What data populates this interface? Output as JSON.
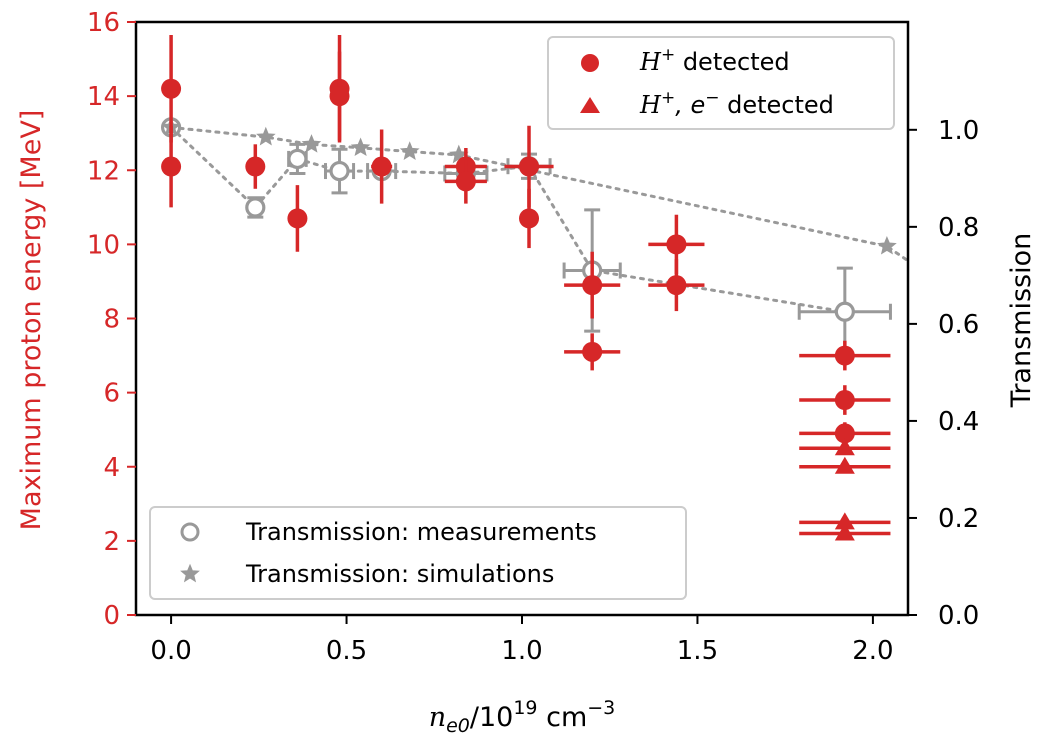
{
  "chart_data": {
    "type": "scatter",
    "xlabel": "n_e0/10^19 cm^-3",
    "xlabel_parts": {
      "n": "n",
      "sub": "e0",
      "mid": "/10",
      "sup1": "19",
      "unit": " cm",
      "sup2": "−3"
    },
    "ylabel_left": "Maximum proton energy [MeV]",
    "ylabel_right": "Transmission",
    "xlim": [
      -0.1,
      2.1
    ],
    "ylim_left": [
      0,
      16
    ],
    "ylim_right": [
      0,
      1.2222
    ],
    "xticks": [
      "0.0",
      "0.5",
      "1.0",
      "1.5",
      "2.0"
    ],
    "xtick_values": [
      0.0,
      0.5,
      1.0,
      1.5,
      2.0
    ],
    "yticks_left": [
      "0",
      "2",
      "4",
      "6",
      "8",
      "10",
      "12",
      "14",
      "16"
    ],
    "ytick_left_values": [
      0,
      2,
      4,
      6,
      8,
      10,
      12,
      14,
      16
    ],
    "yticks_right": [
      "0.0",
      "0.2",
      "0.4",
      "0.6",
      "0.8",
      "1.0"
    ],
    "ytick_right_values": [
      0.0,
      0.2,
      0.4,
      0.6,
      0.8,
      1.0
    ],
    "colors": {
      "red": "#d62728",
      "gray": "#999999"
    },
    "legend_top": {
      "placement": "top-right",
      "entries": [
        {
          "marker": "circle",
          "label_math": "H",
          "label_sup": "+",
          "label_rest": " detected"
        },
        {
          "marker": "triangle",
          "label_math": "H",
          "label_sup": "+",
          "label_mid": ", e",
          "label_sup2": "−",
          "label_rest": " detected"
        }
      ]
    },
    "legend_bottom": {
      "placement": "bottom-left",
      "entries": [
        {
          "marker": "open-circle",
          "label": "Transmission: measurements"
        },
        {
          "marker": "star",
          "label": "Transmission: simulations"
        }
      ]
    },
    "series": [
      {
        "name": "H+ detected",
        "axis": "left",
        "marker": "circle",
        "points": [
          {
            "x": 0.0,
            "y": 14.2,
            "yerr": 1.45,
            "xerr": 0
          },
          {
            "x": 0.0,
            "y": 12.1,
            "yerr": 1.1,
            "xerr": 0
          },
          {
            "x": 0.24,
            "y": 12.1,
            "yerr": 0.6,
            "xerr": 0
          },
          {
            "x": 0.36,
            "y": 10.7,
            "yerr": 0.9,
            "xerr": 0
          },
          {
            "x": 0.48,
            "y": 14.2,
            "yerr": 1.45,
            "xerr": 0
          },
          {
            "x": 0.48,
            "y": 14.0,
            "yerr": 1.2,
            "xerr": 0
          },
          {
            "x": 0.6,
            "y": 12.1,
            "yerr": 1.0,
            "xerr": 0.03
          },
          {
            "x": 0.84,
            "y": 12.1,
            "yerr": 0.5,
            "xerr": 0.06
          },
          {
            "x": 0.84,
            "y": 11.7,
            "yerr": 0.6,
            "xerr": 0.06
          },
          {
            "x": 1.02,
            "y": 12.1,
            "yerr": 1.1,
            "xerr": 0.07
          },
          {
            "x": 1.02,
            "y": 10.7,
            "yerr": 0.8,
            "xerr": 0
          },
          {
            "x": 1.2,
            "y": 8.9,
            "yerr": 0.9,
            "xerr": 0.08
          },
          {
            "x": 1.2,
            "y": 7.1,
            "yerr": 0.5,
            "xerr": 0.08
          },
          {
            "x": 1.44,
            "y": 10.0,
            "yerr": 0.8,
            "xerr": 0.08
          },
          {
            "x": 1.44,
            "y": 8.9,
            "yerr": 0.7,
            "xerr": 0.08
          },
          {
            "x": 1.92,
            "y": 7.0,
            "yerr": 0.4,
            "xerr": 0.13
          },
          {
            "x": 1.92,
            "y": 5.8,
            "yerr": 0.4,
            "xerr": 0.13
          },
          {
            "x": 1.92,
            "y": 4.9,
            "yerr": 0.3,
            "xerr": 0.13
          }
        ]
      },
      {
        "name": "H+, e- detected",
        "axis": "left",
        "marker": "triangle",
        "points": [
          {
            "x": 1.92,
            "y": 4.5,
            "yerr": 0,
            "xerr": 0.13
          },
          {
            "x": 1.92,
            "y": 4.0,
            "yerr": 0,
            "xerr": 0.13
          },
          {
            "x": 1.92,
            "y": 2.5,
            "yerr": 0,
            "xerr": 0.13
          },
          {
            "x": 1.92,
            "y": 2.2,
            "yerr": 0,
            "xerr": 0.13
          }
        ]
      },
      {
        "name": "Transmission: measurements",
        "axis": "right",
        "marker": "open-circle",
        "line": "dotted",
        "points": [
          {
            "x": 0.0,
            "y": 1.005,
            "yerr": 0,
            "xerr": 0
          },
          {
            "x": 0.24,
            "y": 0.84,
            "yerr": 0.02,
            "xerr": 0
          },
          {
            "x": 0.36,
            "y": 0.94,
            "yerr": 0.03,
            "xerr": 0.025
          },
          {
            "x": 0.48,
            "y": 0.915,
            "yerr": 0.045,
            "xerr": 0.04
          },
          {
            "x": 0.6,
            "y": 0.915,
            "yerr": 0.01,
            "xerr": 0.04
          },
          {
            "x": 0.84,
            "y": 0.91,
            "yerr": 0.02,
            "xerr": 0.06
          },
          {
            "x": 1.02,
            "y": 0.925,
            "yerr": 0.025,
            "xerr": 0.06
          },
          {
            "x": 1.2,
            "y": 0.71,
            "yerr": 0.125,
            "xerr": 0.08
          },
          {
            "x": 1.92,
            "y": 0.625,
            "yerr": 0.09,
            "xerr": 0.13
          }
        ]
      },
      {
        "name": "Transmission: simulations",
        "axis": "right",
        "marker": "star",
        "line": "dotted",
        "points": [
          {
            "x": 0.0,
            "y": 1.005
          },
          {
            "x": 0.27,
            "y": 0.985
          },
          {
            "x": 0.4,
            "y": 0.97
          },
          {
            "x": 0.54,
            "y": 0.963
          },
          {
            "x": 0.68,
            "y": 0.955
          },
          {
            "x": 0.82,
            "y": 0.948
          },
          {
            "x": 2.04,
            "y": 0.76
          }
        ]
      }
    ]
  }
}
